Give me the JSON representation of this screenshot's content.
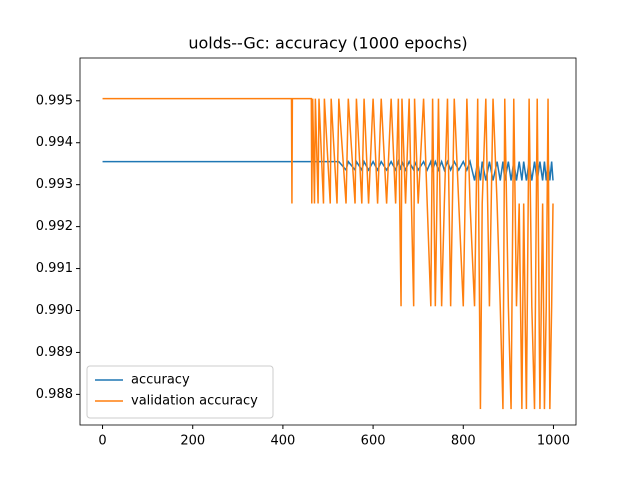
{
  "chart_data": {
    "type": "line",
    "title": "uolds--Gc: accuracy (1000 epochs)",
    "x": [
      0,
      419,
      420,
      421,
      463,
      464,
      466,
      470,
      472,
      478,
      480,
      490,
      492,
      505,
      507,
      520,
      524,
      540,
      545,
      560,
      563,
      575,
      580,
      590,
      600,
      610,
      618,
      630,
      640,
      650,
      656,
      662,
      664,
      672,
      680,
      690,
      692,
      700,
      712,
      720,
      728,
      732,
      738,
      745,
      752,
      758,
      765,
      772,
      780,
      790,
      800,
      808,
      815,
      825,
      832,
      838,
      842,
      850,
      858,
      866,
      875,
      882,
      888,
      892,
      900,
      906,
      912,
      918,
      924,
      930,
      934,
      940,
      946,
      952,
      958,
      964,
      970,
      976,
      980,
      984,
      988,
      992,
      996,
      999
    ],
    "series": [
      {
        "name": "accuracy",
        "color": "#1f77b4",
        "values": [
          0.99355,
          0.99355,
          0.99355,
          0.99355,
          0.99355,
          0.99355,
          0.99355,
          0.99355,
          0.99355,
          0.99355,
          0.99355,
          0.99355,
          0.99355,
          0.99355,
          0.99355,
          0.99355,
          0.99355,
          0.99335,
          0.99355,
          0.99335,
          0.99355,
          0.99335,
          0.99355,
          0.99335,
          0.99355,
          0.99335,
          0.99355,
          0.99335,
          0.99355,
          0.99335,
          0.99355,
          0.99335,
          0.99355,
          0.99335,
          0.99355,
          0.99335,
          0.99355,
          0.99335,
          0.99355,
          0.99335,
          0.99355,
          0.99335,
          0.99355,
          0.99335,
          0.99355,
          0.99335,
          0.99355,
          0.99335,
          0.99355,
          0.99335,
          0.99355,
          0.99335,
          0.99355,
          0.9931,
          0.99355,
          0.9931,
          0.99355,
          0.9931,
          0.99355,
          0.9931,
          0.99355,
          0.9931,
          0.99355,
          0.9931,
          0.99355,
          0.9931,
          0.99355,
          0.9931,
          0.99355,
          0.9931,
          0.99355,
          0.9931,
          0.99355,
          0.9931,
          0.99355,
          0.9931,
          0.99355,
          0.9931,
          0.99355,
          0.9931,
          0.99355,
          0.9931,
          0.99355,
          0.9931
        ]
      },
      {
        "name": "validation accuracy",
        "color": "#ff7f0e",
        "values": [
          0.99505,
          0.99505,
          0.99255,
          0.99505,
          0.99505,
          0.99255,
          0.99505,
          0.99255,
          0.99505,
          0.99255,
          0.99505,
          0.99255,
          0.99505,
          0.99255,
          0.99505,
          0.99255,
          0.99505,
          0.99255,
          0.99505,
          0.99255,
          0.99505,
          0.99255,
          0.99505,
          0.99255,
          0.99505,
          0.99255,
          0.99505,
          0.99255,
          0.99505,
          0.99255,
          0.99505,
          0.9901,
          0.99505,
          0.99255,
          0.99505,
          0.9901,
          0.99505,
          0.99255,
          0.99505,
          0.99255,
          0.9901,
          0.99505,
          0.9901,
          0.99505,
          0.9901,
          0.99255,
          0.99505,
          0.9901,
          0.99505,
          0.99255,
          0.9901,
          0.99505,
          0.99255,
          0.9901,
          0.99505,
          0.98765,
          0.99255,
          0.99505,
          0.9901,
          0.99505,
          0.99255,
          0.9901,
          0.98765,
          0.99505,
          0.9901,
          0.98765,
          0.99505,
          0.9901,
          0.99255,
          0.98765,
          0.99255,
          0.98765,
          0.99505,
          0.9901,
          0.98765,
          0.99505,
          0.98765,
          0.99255,
          0.98765,
          0.9901,
          0.99505,
          0.98765,
          0.9901,
          0.99255
        ]
      }
    ],
    "xlim": [
      -50,
      1050
    ],
    "ylim": [
      0.98727,
      0.99602
    ],
    "xticks": [
      0,
      200,
      400,
      600,
      800,
      1000
    ],
    "yticks": [
      0.988,
      0.989,
      {
        "value": 0.99,
        "label": "0.990"
      },
      0.991,
      0.992,
      0.993,
      0.994,
      0.995
    ],
    "legend": "lower left"
  }
}
